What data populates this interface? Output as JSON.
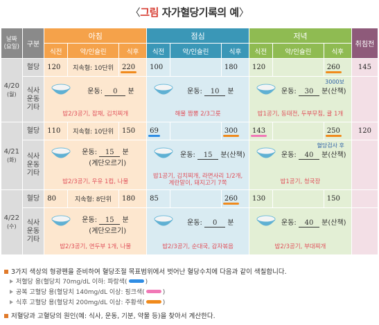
{
  "title": {
    "open": "〈",
    "highlight": "그림",
    "text": "자가혈당기록의 예",
    "close": "〉"
  },
  "header": {
    "date_line1": "날짜",
    "date_line2": "(요일)",
    "gubun": "구분",
    "morning": "아침",
    "noon": "점심",
    "evening": "저녁",
    "bedtime": "취침전",
    "before_meal": "식전",
    "medication": "약/인슐린",
    "after_meal": "식후"
  },
  "row_labels": {
    "glucose": "혈당",
    "meal": [
      "식사",
      "운동",
      "기타"
    ]
  },
  "exercise_label": "운동:",
  "minute_label": "분",
  "days": [
    {
      "date": "4/20",
      "weekday": "(월)",
      "glucose": {
        "morning_before": "120",
        "morning_med": "지속형: 10단위",
        "morning_after": "220",
        "noon_before": "100",
        "noon_med": "",
        "noon_after": "180",
        "evening_before": "120",
        "evening_med": "",
        "evening_after": "260",
        "bedtime": "145"
      },
      "meals": {
        "morning": {
          "exercise": "0",
          "suffix": "",
          "extra": "",
          "note": "",
          "food": "밥2/3공기, 잡채, 김치찌개"
        },
        "noon": {
          "exercise": "10",
          "suffix": "",
          "extra": "",
          "note": "",
          "food": "해물 짬뽕 2/3그릇"
        },
        "evening": {
          "exercise": "30",
          "suffix": "(산책)",
          "extra": "",
          "note": "3000보",
          "food": "밥1공기, 동태전, 두부무침, 귤 1개"
        }
      }
    },
    {
      "date": "4/21",
      "weekday": "(화)",
      "glucose": {
        "morning_before": "110",
        "morning_med": "지속형: 10단위",
        "morning_after": "150",
        "noon_before": "69",
        "noon_med": "",
        "noon_after": "300",
        "evening_before": "143",
        "evening_med": "",
        "evening_after": "250",
        "bedtime": "120"
      },
      "meals": {
        "morning": {
          "exercise": "15",
          "suffix": "",
          "extra": "(계단오르기)",
          "note": "",
          "food": "밥2/3공기, 우유 1컵, 나물"
        },
        "noon": {
          "exercise": "15",
          "suffix": "(산책)",
          "extra": "",
          "note": "",
          "food": "밥1공기, 김치찌개, 라면사리 1/2개, 계란말이, 돼지고기 7쪽"
        },
        "evening": {
          "exercise": "40",
          "suffix": "(산책)",
          "extra": "",
          "note": "혈당검사 후",
          "food": "밥1공기, 청국장"
        }
      }
    },
    {
      "date": "4/22",
      "weekday": "(수)",
      "glucose": {
        "morning_before": "80",
        "morning_med": "지속형: 8단위",
        "morning_after": "180",
        "noon_before": "85",
        "noon_med": "",
        "noon_after": "260",
        "evening_before": "130",
        "evening_med": "",
        "evening_after": "150",
        "bedtime": ""
      },
      "meals": {
        "morning": {
          "exercise": "15",
          "suffix": "",
          "extra": "(계단오르기)",
          "note": "",
          "food": "밥2/3공기, 연두부 1개, 나물"
        },
        "noon": {
          "exercise": "0",
          "suffix": "",
          "extra": "",
          "note": "",
          "food": "밥2/3공기, 순대국, 감자볶음"
        },
        "evening": {
          "exercise": "40",
          "suffix": "(산책)",
          "extra": "",
          "note": "",
          "food": "밥2/3공기, 부대찌개"
        }
      }
    }
  ],
  "footer": {
    "main": "3가지 색상의 형광펜을 준비하여 혈당조절 목표범위에서 벗어난 혈당수치에 다음과 같이 색칠합니다.",
    "low": "저혈당 용(혈당치 70mg/dL 이하: 파랑색(",
    "fasting": "공복 고혈당 용(혈당치 140mg/dL 이상: 핑크색(",
    "post": "식후 고혈당 용(혈당치 200mg/dL 이상: 주황색(",
    "close": ")",
    "cause": "저혈당과 고혈당의 원인(예: 식사, 운동, 기분, 약물 등)을 찾아서 계산한다."
  },
  "colors": {
    "blue": "#2f8de4",
    "pink": "#f178b6",
    "orange": "#f08a1c"
  }
}
